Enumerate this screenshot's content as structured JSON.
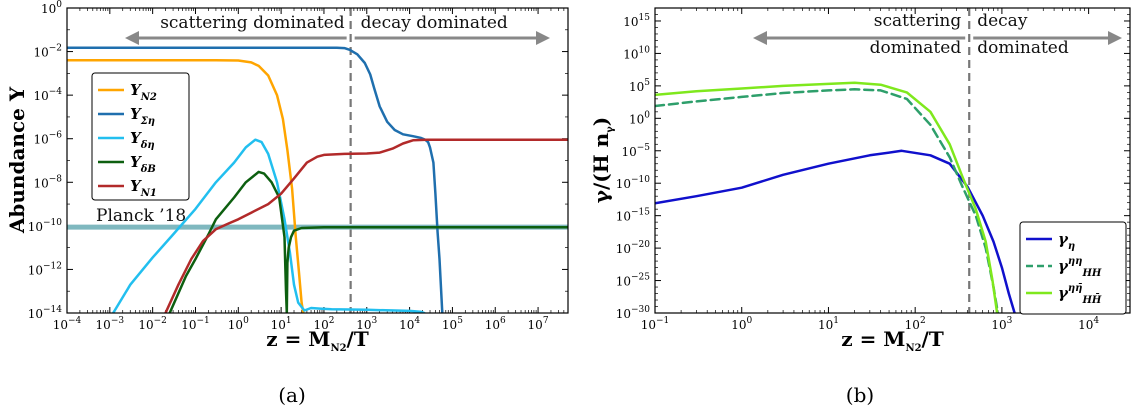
{
  "chart_data": [
    {
      "panel_label": "(a)",
      "type": "line",
      "xlabel": "z = M_{N_2}/T",
      "ylabel": "Abundance Y",
      "xscale": "log",
      "yscale": "log",
      "xlim": [
        0.0001,
        50000000
      ],
      "ylim": [
        1e-14,
        1
      ],
      "x_tick_labels": [
        "10^-4",
        "10^-3",
        "10^-2",
        "10^-1",
        "10^0",
        "10^1",
        "10^2",
        "10^3",
        "10^4",
        "10^5",
        "10^6",
        "10^7"
      ],
      "y_tick_labels": [
        "10^-14",
        "10^-12",
        "10^-10",
        "10^-8",
        "10^-6",
        "10^-4",
        "10^-2",
        "10^0"
      ],
      "regions": [
        {
          "label": "scattering dominated",
          "side": "left"
        },
        {
          "label": "decay dominated",
          "side": "right"
        }
      ],
      "divider_x": 420,
      "reference_line": {
        "label": "Planck ’18",
        "y": 8.7e-11,
        "color": "#7fb8bf"
      },
      "legend_position": "center-left",
      "series": [
        {
          "name": "Y_{N_2}",
          "color": "#ffa500",
          "points": [
            [
              0.0001,
              0.004
            ],
            [
              0.3,
              0.004
            ],
            [
              1,
              0.0039
            ],
            [
              2,
              0.0032
            ],
            [
              3,
              0.0022
            ],
            [
              5,
              0.0008
            ],
            [
              8,
              0.0001
            ],
            [
              11,
              8e-06
            ],
            [
              14,
              3e-07
            ],
            [
              18,
              5e-09
            ],
            [
              22,
              3e-11
            ],
            [
              26,
              8e-13
            ],
            [
              30,
              3e-14
            ],
            [
              33,
              1e-14
            ]
          ]
        },
        {
          "name": "Y_{Ση}",
          "color": "#1f6fae",
          "points": [
            [
              0.0001,
              0.015
            ],
            [
              200,
              0.015
            ],
            [
              300,
              0.0145
            ],
            [
              400,
              0.012
            ],
            [
              600,
              0.0075
            ],
            [
              900,
              0.003
            ],
            [
              1200,
              0.0009
            ],
            [
              1500,
              0.0002
            ],
            [
              2000,
              3e-05
            ],
            [
              3000,
              6e-06
            ],
            [
              4500,
              2.5e-06
            ],
            [
              7000,
              1.6e-06
            ],
            [
              12000,
              1.3e-06
            ],
            [
              18000,
              1.1e-06
            ],
            [
              23000,
              9e-07
            ],
            [
              27000,
              7e-07
            ],
            [
              30000,
              4e-07
            ],
            [
              36000,
              8e-08
            ],
            [
              40000,
              3e-09
            ],
            [
              45000,
              5e-11
            ],
            [
              50000,
              3e-12
            ],
            [
              58000,
              1e-14
            ]
          ]
        },
        {
          "name": "Y_{δη}",
          "color": "#22bfef",
          "points": [
            [
              0.0012,
              1e-14
            ],
            [
              0.003,
              2e-13
            ],
            [
              0.01,
              3.5e-12
            ],
            [
              0.03,
              4e-11
            ],
            [
              0.1,
              6e-10
            ],
            [
              0.3,
              1e-08
            ],
            [
              0.8,
              8e-08
            ],
            [
              1.5,
              4e-07
            ],
            [
              2.5,
              9e-07
            ],
            [
              3.5,
              7e-07
            ],
            [
              5,
              2e-07
            ],
            [
              8,
              1e-08
            ],
            [
              12,
              2e-10
            ],
            [
              16,
              6e-12
            ],
            [
              20,
              2e-13
            ],
            [
              25,
              3e-14
            ],
            [
              35,
              1.3e-14
            ],
            [
              50,
              1.7e-14
            ],
            [
              80,
              1.6e-14
            ],
            [
              150,
              1.5e-14
            ],
            [
              1000,
              1.4e-14
            ],
            [
              10000,
              1.25e-14
            ],
            [
              18000,
              1.15e-14
            ],
            [
              22000,
              1e-14
            ]
          ]
        },
        {
          "name": "Y_{δB}",
          "color": "#0d5f10",
          "points": [
            [
              0.025,
              1e-14
            ],
            [
              0.06,
              5e-13
            ],
            [
              0.1,
              3e-12
            ],
            [
              0.2,
              4e-11
            ],
            [
              0.3,
              2e-10
            ],
            [
              0.8,
              2e-09
            ],
            [
              1.5,
              1e-08
            ],
            [
              3,
              3e-08
            ],
            [
              4,
              2.5e-08
            ],
            [
              6,
              1e-08
            ],
            [
              9,
              2e-09
            ],
            [
              12,
              3e-11
            ],
            [
              13,
              1e-13
            ],
            [
              13.6,
              1e-14
            ],
            [
              14,
              2e-12
            ],
            [
              15,
              1e-11
            ],
            [
              17,
              3e-11
            ],
            [
              20,
              6e-11
            ],
            [
              30,
              8e-11
            ],
            [
              100,
              8.7e-11
            ],
            [
              50000000,
              8.7e-11
            ]
          ]
        },
        {
          "name": "Y_{N_1}",
          "color": "#b22a2a",
          "points": [
            [
              0.02,
              1e-14
            ],
            [
              0.04,
              2e-13
            ],
            [
              0.08,
              3e-12
            ],
            [
              0.15,
              2e-11
            ],
            [
              0.3,
              7e-11
            ],
            [
              0.6,
              1.3e-10
            ],
            [
              1,
              2e-10
            ],
            [
              2,
              4e-10
            ],
            [
              5,
              1e-09
            ],
            [
              10,
              3e-09
            ],
            [
              20,
              1.5e-08
            ],
            [
              40,
              8e-08
            ],
            [
              70,
              1.5e-07
            ],
            [
              100,
              1.8e-07
            ],
            [
              300,
              2e-07
            ],
            [
              1000,
              2.1e-07
            ],
            [
              2000,
              2.3e-07
            ],
            [
              4000,
              3.5e-07
            ],
            [
              7000,
              6e-07
            ],
            [
              12000,
              8.5e-07
            ],
            [
              25000,
              9e-07
            ],
            [
              50000000,
              9e-07
            ]
          ]
        }
      ]
    },
    {
      "panel_label": "(b)",
      "type": "line",
      "xlabel": "z = M_{N_2}/T",
      "ylabel": "γ/(H n_γ)",
      "xscale": "log",
      "yscale": "log",
      "xlim": [
        0.1,
        30000
      ],
      "ylim": [
        1e-30,
        1e+17
      ],
      "x_tick_labels": [
        "10^-1",
        "10^0",
        "10^1",
        "10^2",
        "10^3",
        "10^4"
      ],
      "y_tick_labels": [
        "10^-30",
        "10^-25",
        "10^-20",
        "10^-15",
        "10^-10",
        "10^-5",
        "10^0",
        "10^5",
        "10^10",
        "10^15"
      ],
      "regions": [
        {
          "label": "scattering dominated",
          "side": "left"
        },
        {
          "label": "decay dominated",
          "side": "right"
        }
      ],
      "divider_x": 420,
      "legend_position": "lower-right",
      "series": [
        {
          "name": "γ_η",
          "color": "#1010cc",
          "dashed": false,
          "points": [
            [
              0.1,
              8e-14
            ],
            [
              0.3,
              1e-12
            ],
            [
              1,
              2e-11
            ],
            [
              3,
              2e-09
            ],
            [
              10,
              1e-07
            ],
            [
              30,
              2e-06
            ],
            [
              70,
              1e-05
            ],
            [
              150,
              2e-06
            ],
            [
              250,
              1e-07
            ],
            [
              400,
              3e-11
            ],
            [
              600,
              1e-15
            ],
            [
              800,
              1e-19
            ],
            [
              1000,
              1e-23
            ],
            [
              1200,
              1e-27
            ],
            [
              1400,
              1e-30
            ]
          ]
        },
        {
          "name": "γ^{ηη}_{HH}",
          "color": "#2e9f6b",
          "dashed": true,
          "points": [
            [
              0.1,
              80.0
            ],
            [
              0.3,
              400.0
            ],
            [
              1,
              2000.0
            ],
            [
              3,
              8000.0
            ],
            [
              10,
              20000.0
            ],
            [
              20,
              30000.0
            ],
            [
              40,
              20000.0
            ],
            [
              80,
              1000.0
            ],
            [
              150,
              0.1
            ],
            [
              250,
              1e-06
            ],
            [
              350,
              3e-11
            ],
            [
              500,
              1e-15
            ],
            [
              650,
              1e-20
            ],
            [
              800,
              1e-26
            ],
            [
              900,
              1e-30
            ]
          ]
        },
        {
          "name": "γ^{ηη̄}_{HH̄}",
          "color": "#7fe81d",
          "dashed": false,
          "points": [
            [
              0.1,
              4000.0
            ],
            [
              0.3,
              15000.0
            ],
            [
              1,
              40000.0
            ],
            [
              3,
              100000.0
            ],
            [
              10,
              200000.0
            ],
            [
              20,
              300000.0
            ],
            [
              40,
              150000.0
            ],
            [
              80,
              10000.0
            ],
            [
              150,
              10.0
            ],
            [
              250,
              0.0001
            ],
            [
              350,
              1e-09
            ],
            [
              500,
              1e-14
            ],
            [
              650,
              1e-19
            ],
            [
              780,
              1e-25
            ],
            [
              880,
              1e-30
            ]
          ]
        }
      ]
    }
  ]
}
